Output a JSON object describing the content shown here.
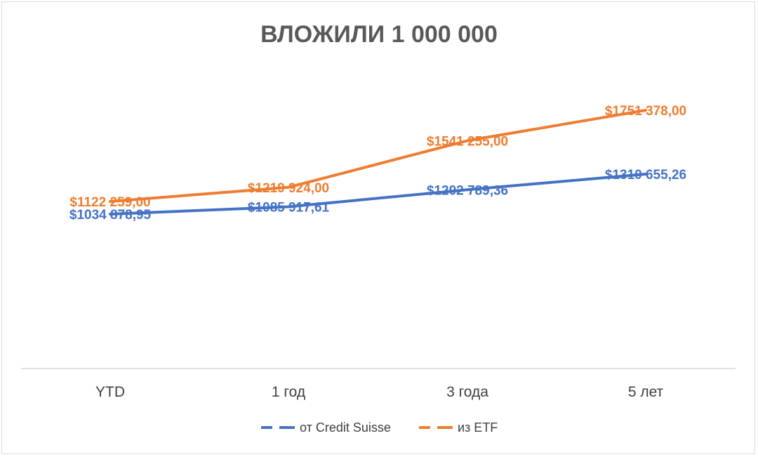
{
  "chart_data": {
    "type": "line",
    "title": "ВЛОЖИЛИ 1 000 000",
    "categories": [
      "YTD",
      "1 год",
      "3 года",
      "5 лет"
    ],
    "series": [
      {
        "name": "от Credit Suisse",
        "color": "#4472C4",
        "values": [
          1034878.95,
          1085917.61,
          1202789.36,
          1310655.26
        ],
        "labels": [
          "$1034 878,95",
          "$1085 917,61",
          "$1202 789,36",
          "$1310 655,26"
        ]
      },
      {
        "name": "из ETF",
        "color": "#ED7D31",
        "values": [
          1122259.0,
          1219924.0,
          1541255.0,
          1751378.0
        ],
        "labels": [
          "$1122 259,00",
          "$1219 924,00",
          "$1541 255,00",
          "$1751 378,00"
        ]
      }
    ],
    "xlabel": "",
    "ylabel": "",
    "grid": false,
    "legend": "bottom"
  }
}
